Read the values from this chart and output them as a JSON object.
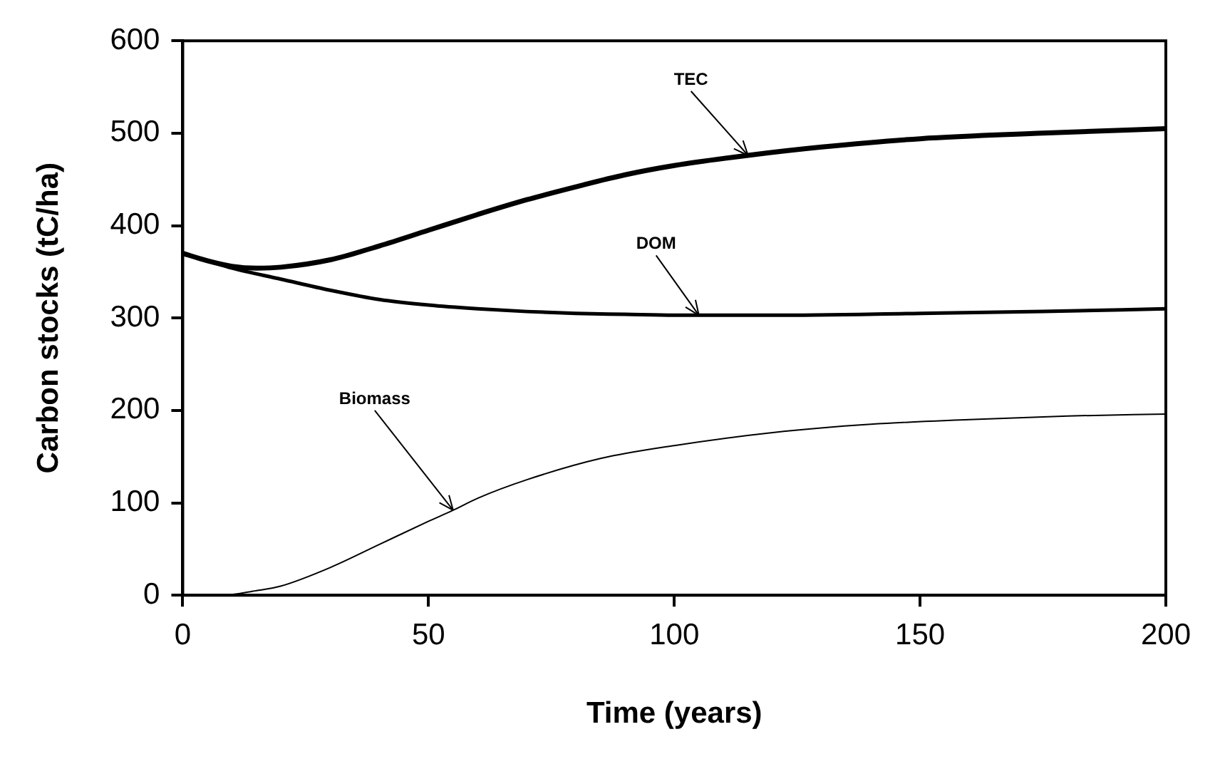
{
  "chart_data": {
    "type": "line",
    "xlabel": "Time (years)",
    "ylabel": "Carbon stocks (tC/ha)",
    "xlim": [
      0,
      200
    ],
    "xticks": [
      0,
      50,
      100,
      150,
      200
    ],
    "ylim": [
      0,
      600
    ],
    "yticks": [
      0,
      100,
      200,
      300,
      400,
      500,
      600
    ],
    "grid": false,
    "legend": false,
    "marker": "none",
    "series": [
      {
        "color": "#000000",
        "x": [
          0,
          5,
          10,
          15,
          20,
          30,
          40,
          50,
          60,
          70,
          80,
          90,
          100,
          115,
          130,
          150,
          175,
          200
        ],
        "values": [
          370,
          362,
          356,
          354,
          355,
          363,
          378,
          395,
          412,
          428,
          442,
          455,
          465,
          476,
          485,
          494,
          500,
          505
        ]
      },
      {
        "color": "#000000",
        "x": [
          0,
          5,
          10,
          20,
          30,
          40,
          50,
          60,
          70,
          80,
          90,
          100,
          120,
          150,
          175,
          200
        ],
        "values": [
          370,
          362,
          354,
          342,
          330,
          320,
          314,
          310,
          307,
          305,
          304,
          303,
          303,
          305,
          307,
          310
        ]
      },
      {
        "color": "#000000",
        "x": [
          0,
          8,
          15,
          20,
          30,
          40,
          50,
          55,
          60,
          70,
          85,
          100,
          120,
          140,
          160,
          180,
          200
        ],
        "values": [
          0,
          0,
          5,
          10,
          30,
          55,
          80,
          92,
          105,
          125,
          148,
          162,
          176,
          185,
          190,
          194,
          196
        ]
      }
    ],
    "annotations": [
      {
        "text": "TEC",
        "x": 115,
        "y": 476
      },
      {
        "text": "DOM",
        "x": 105,
        "y": 303
      },
      {
        "text": "Biomass",
        "x": 55,
        "y": 92
      }
    ]
  }
}
